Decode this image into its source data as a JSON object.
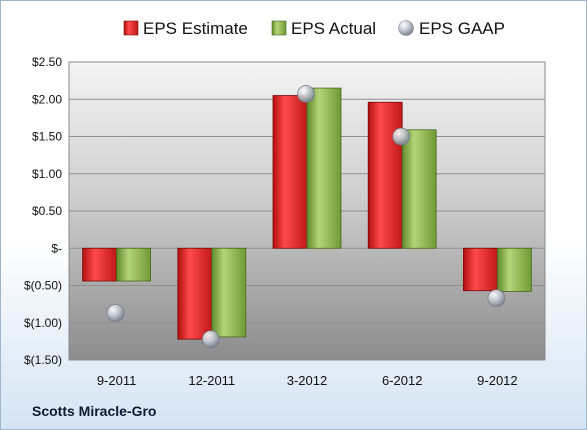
{
  "company": "Scotts Miracle-Gro",
  "legend": {
    "estimate": "EPS Estimate",
    "actual": "EPS Actual",
    "gaap": "EPS GAAP"
  },
  "colors": {
    "estimate": "#e02020",
    "actual": "#8fb24a",
    "gaap": "#b9bfc8"
  },
  "chart_data": {
    "type": "bar",
    "categories": [
      "9-2011",
      "12-2011",
      "3-2012",
      "6-2012",
      "9-2012"
    ],
    "series": [
      {
        "name": "EPS Estimate",
        "values": [
          -0.44,
          -1.22,
          2.05,
          1.96,
          -0.57
        ]
      },
      {
        "name": "EPS Actual",
        "values": [
          -0.44,
          -1.19,
          2.15,
          1.59,
          -0.58
        ]
      },
      {
        "name": "EPS GAAP",
        "values": [
          -0.87,
          -1.22,
          2.07,
          1.5,
          -0.67
        ]
      }
    ],
    "ylim": [
      -1.5,
      2.5
    ],
    "yticks": [
      -1.5,
      -1.0,
      -0.5,
      0,
      0.5,
      1.0,
      1.5,
      2.0,
      2.5
    ],
    "ytick_labels": [
      "$(1.50)",
      "$(1.00)",
      "$(0.50)",
      "$-",
      "$0.50",
      "$1.00",
      "$1.50",
      "$2.00",
      "$2.50"
    ],
    "grid": true,
    "legend_position": "top"
  }
}
